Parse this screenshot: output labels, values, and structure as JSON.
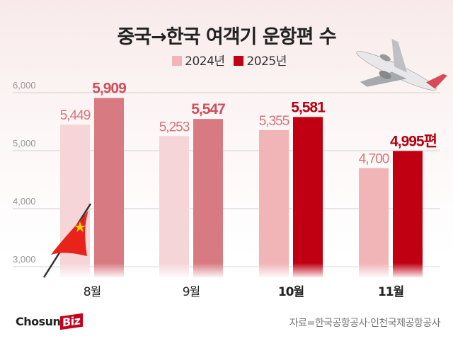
{
  "chart_data": {
    "type": "bar",
    "title": "중국→한국 여객기 운항편 수",
    "categories": [
      "8월",
      "9월",
      "10월",
      "11월"
    ],
    "series": [
      {
        "name": "2024년",
        "values": [
          5449,
          5253,
          5355,
          4700
        ],
        "labels": [
          "5,449",
          "5,253",
          "5,355",
          "4,700"
        ]
      },
      {
        "name": "2025년",
        "values": [
          5909,
          5547,
          5581,
          4995
        ],
        "labels": [
          "5,909",
          "5,547",
          "5,581",
          "4,995편"
        ]
      }
    ],
    "yticks": [
      "3,000",
      "4,000",
      "5,000",
      "6,000"
    ],
    "ytick_values": [
      3000,
      4000,
      5000,
      6000
    ],
    "ylim": [
      2850,
      6000
    ],
    "grid": true,
    "legend": "top-center",
    "colors": {
      "2024_muted": "#f5d5d8",
      "2025_muted": "#d87a82",
      "2024_highlight": "#f1b5b8",
      "2025_highlight": "#c00012",
      "label_2024": "#d9737a",
      "label_2025_muted": "#cf4f5a",
      "label_2025_highlight": "#b3000f"
    },
    "highlighted_categories": [
      "10월",
      "11월"
    ]
  },
  "legend": {
    "items": [
      "2024년",
      "2025년"
    ]
  },
  "source": "자료=한국공항공사·인천국제공항공사",
  "logo": {
    "text": "Chosun",
    "accent": "Biz"
  },
  "icons": [
    "airplane-icon",
    "china-flag-icon"
  ]
}
